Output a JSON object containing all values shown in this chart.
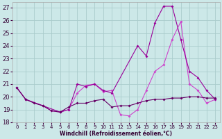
{
  "background_color": "#cce8e8",
  "grid_color": "#aacccc",
  "line_color_thin": "#990099",
  "line_color_mid": "#cc44cc",
  "line_color_bold": "#660066",
  "xlabel": "Windchill (Refroidissement éolien,°C)",
  "xlim": [
    -0.5,
    23.5
  ],
  "ylim": [
    18,
    27.4
  ],
  "yticks": [
    18,
    19,
    20,
    21,
    22,
    23,
    24,
    25,
    26,
    27
  ],
  "xticks": [
    0,
    1,
    2,
    3,
    4,
    5,
    6,
    7,
    8,
    9,
    10,
    11,
    12,
    13,
    14,
    15,
    16,
    17,
    18,
    19,
    20,
    21,
    22,
    23
  ],
  "s1_x": [
    0,
    1,
    3,
    4,
    5,
    6,
    7,
    8,
    9,
    10,
    11,
    12,
    13,
    14,
    15,
    16,
    17,
    18,
    19,
    20,
    21,
    22,
    23
  ],
  "s1_y": [
    20.7,
    19.8,
    19.3,
    18.9,
    18.8,
    19.0,
    20.3,
    20.9,
    21.0,
    20.4,
    20.5,
    18.6,
    18.5,
    19.0,
    20.5,
    22.0,
    22.5,
    24.5,
    25.9,
    21.0,
    20.5,
    19.5,
    19.8
  ],
  "s2_x": [
    0,
    1,
    3,
    5,
    6,
    7,
    8,
    9,
    10,
    11,
    14,
    15,
    16,
    17,
    18,
    19,
    20,
    21,
    22,
    23
  ],
  "s2_y": [
    20.7,
    19.8,
    19.3,
    18.8,
    19.0,
    21.0,
    20.8,
    21.0,
    20.5,
    20.3,
    24.0,
    23.2,
    25.8,
    27.1,
    27.1,
    24.5,
    22.0,
    21.5,
    20.5,
    19.8
  ],
  "s3_x": [
    0,
    1,
    2,
    3,
    4,
    5,
    6,
    7,
    8,
    9,
    10,
    11,
    12,
    13,
    14,
    15,
    16,
    17,
    18,
    19,
    20,
    21,
    22,
    23
  ],
  "s3_y": [
    20.7,
    19.8,
    19.5,
    19.3,
    18.9,
    18.8,
    19.2,
    19.5,
    19.5,
    19.7,
    19.8,
    19.2,
    19.3,
    19.3,
    19.5,
    19.7,
    19.8,
    19.8,
    19.9,
    19.9,
    20.0,
    20.0,
    19.9,
    19.9
  ]
}
